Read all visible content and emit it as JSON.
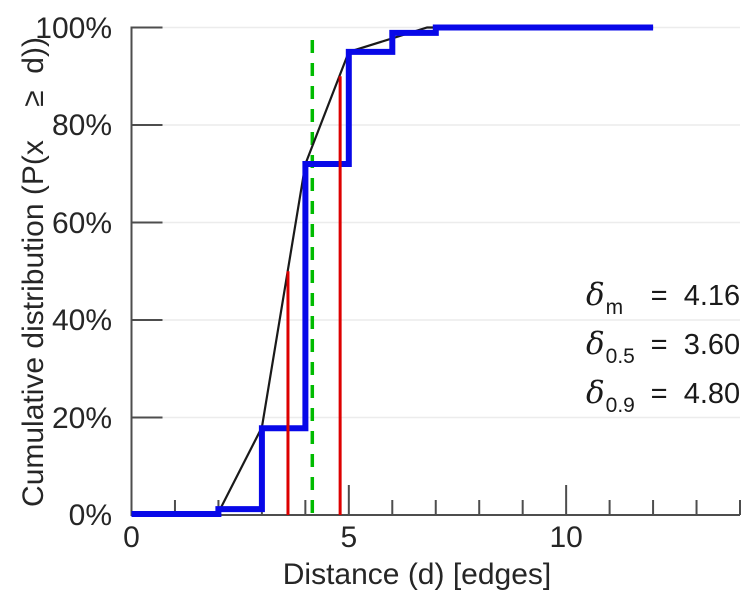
{
  "chart_data": {
    "type": "step",
    "description": "Empirical cumulative distribution of graph distances (blue step function) with a fitted/interpolated CDF curve (thin black line), red vertical marker lines at the 50th and 90th percentiles, and a green dashed vertical line at the mean.",
    "xlabel": "Distance (d) [edges]",
    "ylabel": "Cumulative distribution (P(x    ≥  d))",
    "xlim": [
      0,
      14
    ],
    "ylim_pct": [
      0,
      100
    ],
    "grid": "horizontal-light",
    "x_major_ticks": [
      {
        "value": 0,
        "label": "0"
      },
      {
        "value": 5,
        "label": "5"
      },
      {
        "value": 10,
        "label": "10"
      }
    ],
    "x_minor_ticks": [
      1,
      2,
      3,
      4,
      6,
      7,
      8,
      9,
      11,
      12,
      13,
      14
    ],
    "y_ticks": [
      {
        "value": 0,
        "label": "0%"
      },
      {
        "value": 20,
        "label": "20%"
      },
      {
        "value": 40,
        "label": "40%"
      },
      {
        "value": 60,
        "label": "60%"
      },
      {
        "value": 80,
        "label": "80%"
      },
      {
        "value": 100,
        "label": "100%"
      }
    ],
    "y_gridlines": [
      20,
      40,
      60,
      80,
      100
    ],
    "series": [
      {
        "name": "fitted-cdf-line",
        "style": "line",
        "color": "#1a1a1a",
        "width": 2.2,
        "points_d_pct": [
          [
            2,
            0.5
          ],
          [
            3,
            18
          ],
          [
            4,
            72
          ],
          [
            5,
            95
          ],
          [
            6.8,
            100
          ],
          [
            12,
            100
          ]
        ]
      },
      {
        "name": "empirical-cdf-steps",
        "style": "step",
        "color": "#0808e8",
        "width": 6,
        "points_d_pct": [
          [
            0,
            0.2
          ],
          [
            2,
            1.2
          ],
          [
            3,
            17.8
          ],
          [
            4,
            72
          ],
          [
            5,
            95
          ],
          [
            6,
            98.9
          ],
          [
            7,
            100
          ],
          [
            12,
            100
          ]
        ]
      }
    ],
    "vlines": [
      {
        "name": "mean-line",
        "x": 4.16,
        "top_pct": 99,
        "color": "#00bb00",
        "dashed": true,
        "width": 3.5
      },
      {
        "name": "median-line",
        "x": 3.6,
        "top_pct": 50,
        "color": "#dd0000",
        "dashed": false,
        "width": 3
      },
      {
        "name": "p90-line",
        "x": 4.8,
        "top_pct": 90,
        "color": "#dd0000",
        "dashed": false,
        "width": 3
      }
    ],
    "annotations": [
      {
        "symbol": "δ",
        "subscript": "m",
        "value": "=  4.16"
      },
      {
        "symbol": "δ",
        "subscript": "0.5",
        "value": "=  3.60"
      },
      {
        "symbol": "δ",
        "subscript": "0.9",
        "value": "=  4.80"
      }
    ],
    "colors": {
      "step": "#0808e8",
      "fit_line": "#1a1a1a",
      "percentile_markers": "#dd0000",
      "mean_marker": "#00bb00",
      "axis": "#4d4d4d",
      "grid": "#ececec",
      "text": "#262626",
      "background": "#ffffff"
    }
  }
}
